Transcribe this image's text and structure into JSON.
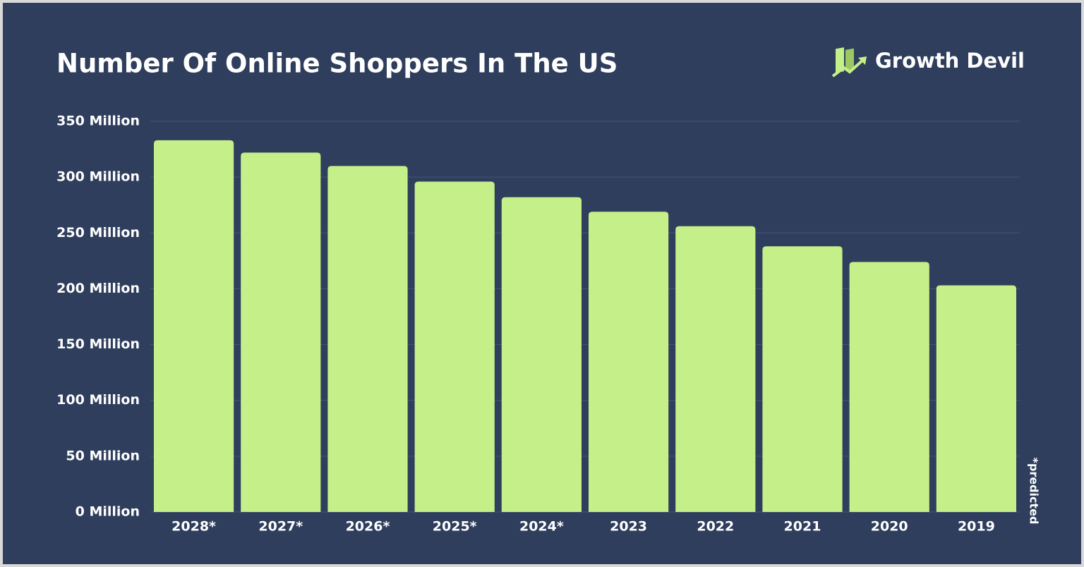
{
  "chart_data": {
    "type": "bar",
    "title": "Number Of Online Shoppers In The US",
    "brand": "Growth Devil",
    "note": "*predicted",
    "categories": [
      "2028*",
      "2027*",
      "2026*",
      "2025*",
      "2024*",
      "2023",
      "2022",
      "2021",
      "2020",
      "2019"
    ],
    "values": [
      333,
      322,
      310,
      296,
      282,
      269,
      256,
      238,
      224,
      203
    ],
    "color": "#c5ef88",
    "ylim": [
      0,
      350
    ],
    "yticks": [
      {
        "value": 0,
        "label": "0 Million"
      },
      {
        "value": 50,
        "label": "50 Million"
      },
      {
        "value": 100,
        "label": "100 Million"
      },
      {
        "value": 150,
        "label": "150 Million"
      },
      {
        "value": 200,
        "label": "200 Million"
      },
      {
        "value": 250,
        "label": "250 Million"
      },
      {
        "value": 300,
        "label": "300 Million"
      },
      {
        "value": 350,
        "label": "350 Million"
      }
    ],
    "grid": true
  }
}
